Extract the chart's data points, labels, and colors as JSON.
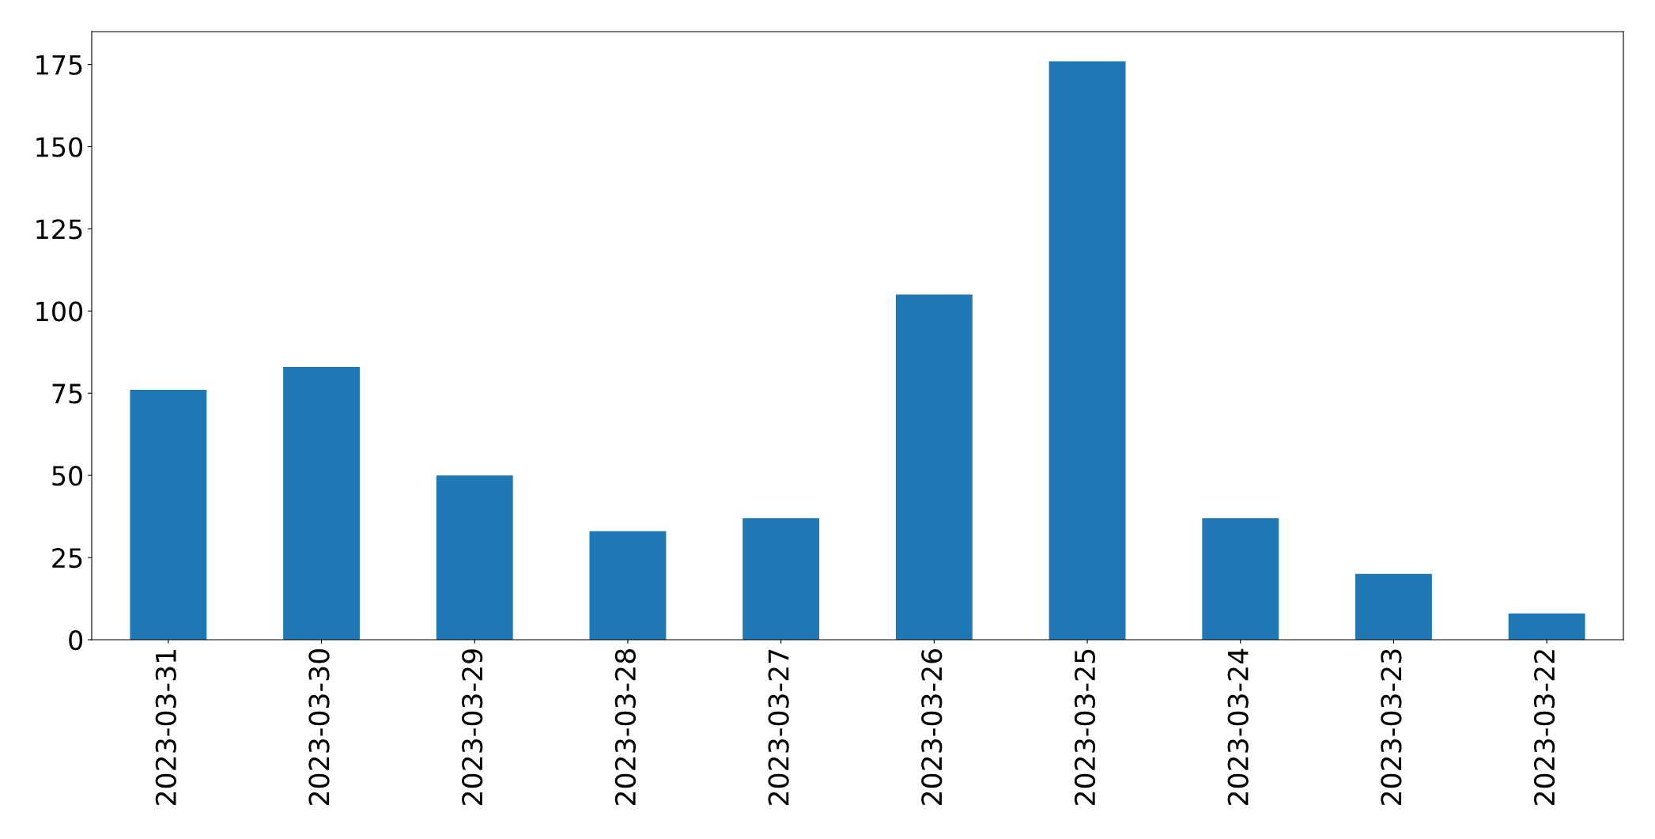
{
  "chart_data": {
    "type": "bar",
    "categories": [
      "2023-03-31",
      "2023-03-30",
      "2023-03-29",
      "2023-03-28",
      "2023-03-27",
      "2023-03-26",
      "2023-03-25",
      "2023-03-24",
      "2023-03-23",
      "2023-03-22"
    ],
    "values": [
      76,
      83,
      50,
      33,
      37,
      105,
      176,
      37,
      20,
      8
    ],
    "color": "#1f77b4",
    "ylim": [
      0,
      185
    ],
    "yticks": [
      0,
      25,
      50,
      75,
      100,
      125,
      150,
      175
    ],
    "grid": false
  }
}
